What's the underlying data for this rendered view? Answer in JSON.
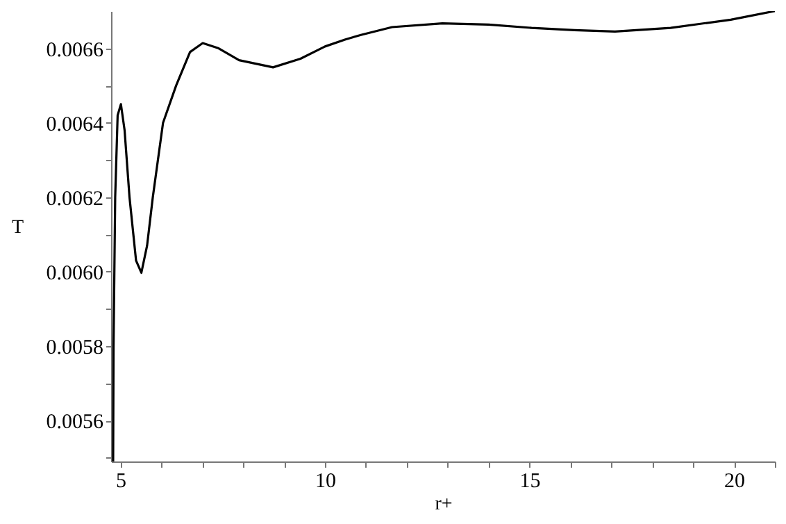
{
  "chart_data": {
    "type": "line",
    "xlabel": "r+",
    "ylabel": "T",
    "xlim": [
      4.77,
      21.0
    ],
    "ylim": [
      0.00549,
      0.0067
    ],
    "xticks": [
      5,
      {
        "value": 6,
        "label": null
      },
      {
        "value": 7,
        "label": null
      },
      {
        "value": 8,
        "label": null
      },
      {
        "value": 9,
        "label": null
      },
      10,
      {
        "value": 11,
        "label": null
      },
      {
        "value": 12,
        "label": null
      },
      {
        "value": 13,
        "label": null
      },
      {
        "value": 14,
        "label": null
      },
      15,
      {
        "value": 16,
        "label": null
      },
      {
        "value": 17,
        "label": null
      },
      {
        "value": 18,
        "label": null
      },
      {
        "value": 19,
        "label": null
      },
      20,
      {
        "value": 21,
        "label": null
      }
    ],
    "yticks": [
      {
        "value": 0.0055,
        "label": null
      },
      {
        "value": 0.0056,
        "label": "0.0056"
      },
      {
        "value": 0.0057,
        "label": null
      },
      {
        "value": 0.0058,
        "label": "0.0058"
      },
      {
        "value": 0.0059,
        "label": null
      },
      {
        "value": 0.006,
        "label": "0.0060"
      },
      {
        "value": 0.0061,
        "label": null
      },
      {
        "value": 0.0062,
        "label": "0.0062"
      },
      {
        "value": 0.0063,
        "label": null
      },
      {
        "value": 0.0064,
        "label": "0.0064"
      },
      {
        "value": 0.0065,
        "label": null
      },
      {
        "value": 0.0066,
        "label": "0.0066"
      }
    ],
    "grid": false,
    "marker": "none",
    "line_style": "solid",
    "x": [
      4.82,
      4.83,
      4.87,
      4.93,
      5.01,
      5.1,
      5.22,
      5.38,
      5.51,
      5.65,
      5.79,
      6.04,
      6.36,
      6.7,
      7.01,
      7.4,
      7.9,
      8.73,
      9.4,
      10.0,
      10.5,
      10.88,
      11.64,
      12.87,
      14.0,
      15.05,
      16.1,
      17.09,
      18.45,
      19.92,
      20.99
    ],
    "series": [
      {
        "color": "#000000",
        "values": [
          0.00549,
          0.0058,
          0.0062,
          0.00642,
          0.00645,
          0.00638,
          0.0062,
          0.00603,
          0.005997,
          0.00607,
          0.0062,
          0.0064,
          0.0065,
          0.00659,
          0.006614,
          0.0066,
          0.006568,
          0.006549,
          0.006572,
          0.006605,
          0.006624,
          0.006636,
          0.006657,
          0.006667,
          0.006664,
          0.006655,
          0.006649,
          0.006645,
          0.006655,
          0.006677,
          0.0067
        ]
      }
    ]
  }
}
